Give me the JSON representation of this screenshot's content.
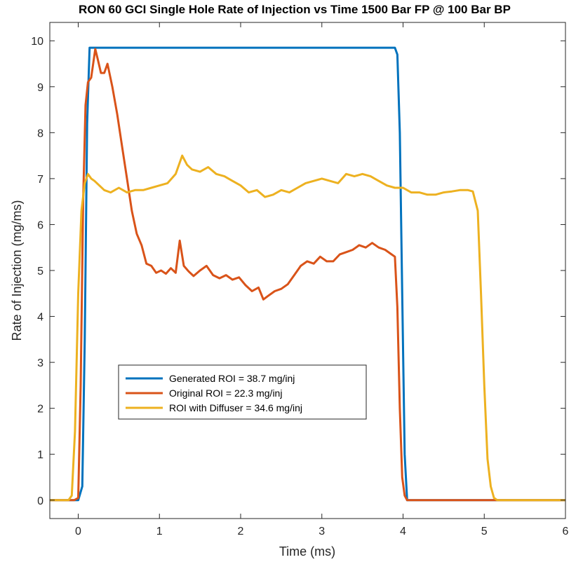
{
  "chart_data": {
    "type": "line",
    "title": "RON 60 GCI Single Hole Rate of Injection vs Time 1500 Bar FP @ 100 Bar BP",
    "xlabel": "Time (ms)",
    "ylabel": "Rate of Injection (mg/ms)",
    "xlim": [
      -0.35,
      6
    ],
    "ylim": [
      -0.4,
      10.4
    ],
    "xticks": [
      0,
      1,
      2,
      3,
      4,
      5,
      6
    ],
    "yticks": [
      0,
      1,
      2,
      3,
      4,
      5,
      6,
      7,
      8,
      9,
      10
    ],
    "grid": false,
    "legend_position": "lower-left",
    "series": [
      {
        "name": "Generated ROI = 38.7 mg/inj",
        "color": "#0072BD",
        "x": [
          -0.35,
          0.0,
          0.05,
          0.08,
          0.11,
          0.14,
          3.9,
          3.93,
          3.96,
          3.99,
          4.02,
          4.05,
          6.0
        ],
        "y": [
          0,
          0,
          0.3,
          3.5,
          8.2,
          9.85,
          9.85,
          9.7,
          8.0,
          4.5,
          1.0,
          0,
          0
        ]
      },
      {
        "name": "Original ROI = 22.3 mg/inj",
        "color": "#D95319",
        "x": [
          -0.35,
          -0.05,
          0.0,
          0.03,
          0.06,
          0.09,
          0.12,
          0.16,
          0.21,
          0.24,
          0.28,
          0.32,
          0.36,
          0.42,
          0.48,
          0.54,
          0.6,
          0.66,
          0.72,
          0.78,
          0.84,
          0.9,
          0.96,
          1.02,
          1.08,
          1.14,
          1.2,
          1.25,
          1.3,
          1.36,
          1.42,
          1.5,
          1.58,
          1.66,
          1.74,
          1.82,
          1.9,
          1.98,
          2.06,
          2.14,
          2.22,
          2.28,
          2.34,
          2.42,
          2.5,
          2.58,
          2.66,
          2.74,
          2.82,
          2.9,
          2.98,
          3.06,
          3.14,
          3.22,
          3.3,
          3.38,
          3.46,
          3.54,
          3.62,
          3.7,
          3.78,
          3.86,
          3.9,
          3.93,
          3.96,
          3.99,
          4.02,
          4.05,
          6.0
        ],
        "y": [
          0,
          0,
          0.05,
          2.5,
          6.5,
          8.6,
          9.1,
          9.2,
          9.82,
          9.6,
          9.3,
          9.3,
          9.5,
          9.0,
          8.4,
          7.7,
          7.0,
          6.3,
          5.8,
          5.55,
          5.15,
          5.1,
          4.95,
          5.0,
          4.93,
          5.05,
          4.95,
          5.65,
          5.1,
          4.98,
          4.88,
          5.0,
          5.1,
          4.9,
          4.83,
          4.9,
          4.8,
          4.85,
          4.68,
          4.55,
          4.63,
          4.37,
          4.45,
          4.55,
          4.6,
          4.7,
          4.9,
          5.1,
          5.2,
          5.15,
          5.3,
          5.2,
          5.2,
          5.35,
          5.4,
          5.45,
          5.55,
          5.5,
          5.6,
          5.5,
          5.45,
          5.35,
          5.3,
          4.2,
          2.0,
          0.5,
          0.1,
          0.0,
          0
        ]
      },
      {
        "name": "ROI with Diffuser = 34.6 mg/inj",
        "color": "#EDB120",
        "x": [
          -0.35,
          -0.12,
          -0.08,
          -0.04,
          0.0,
          0.04,
          0.08,
          0.12,
          0.16,
          0.2,
          0.26,
          0.32,
          0.4,
          0.5,
          0.6,
          0.7,
          0.8,
          0.9,
          1.0,
          1.1,
          1.2,
          1.28,
          1.34,
          1.4,
          1.5,
          1.6,
          1.7,
          1.8,
          1.9,
          2.0,
          2.1,
          2.2,
          2.3,
          2.4,
          2.5,
          2.6,
          2.7,
          2.8,
          2.9,
          3.0,
          3.1,
          3.2,
          3.3,
          3.4,
          3.5,
          3.6,
          3.7,
          3.8,
          3.9,
          4.0,
          4.1,
          4.2,
          4.3,
          4.4,
          4.5,
          4.6,
          4.7,
          4.8,
          4.86,
          4.92,
          4.96,
          5.0,
          5.04,
          5.08,
          5.12,
          5.16,
          5.2,
          6.0
        ],
        "y": [
          0,
          0,
          0.1,
          1.5,
          4.5,
          6.3,
          6.9,
          7.1,
          7.0,
          6.95,
          6.85,
          6.75,
          6.7,
          6.8,
          6.7,
          6.75,
          6.75,
          6.8,
          6.85,
          6.9,
          7.1,
          7.5,
          7.3,
          7.2,
          7.15,
          7.25,
          7.1,
          7.05,
          6.95,
          6.85,
          6.7,
          6.75,
          6.6,
          6.65,
          6.75,
          6.7,
          6.8,
          6.9,
          6.95,
          7.0,
          6.95,
          6.9,
          7.1,
          7.05,
          7.1,
          7.05,
          6.95,
          6.85,
          6.8,
          6.8,
          6.7,
          6.7,
          6.65,
          6.65,
          6.7,
          6.72,
          6.75,
          6.75,
          6.72,
          6.3,
          4.5,
          2.5,
          0.9,
          0.3,
          0.05,
          0.0,
          0.0,
          0
        ]
      }
    ]
  }
}
